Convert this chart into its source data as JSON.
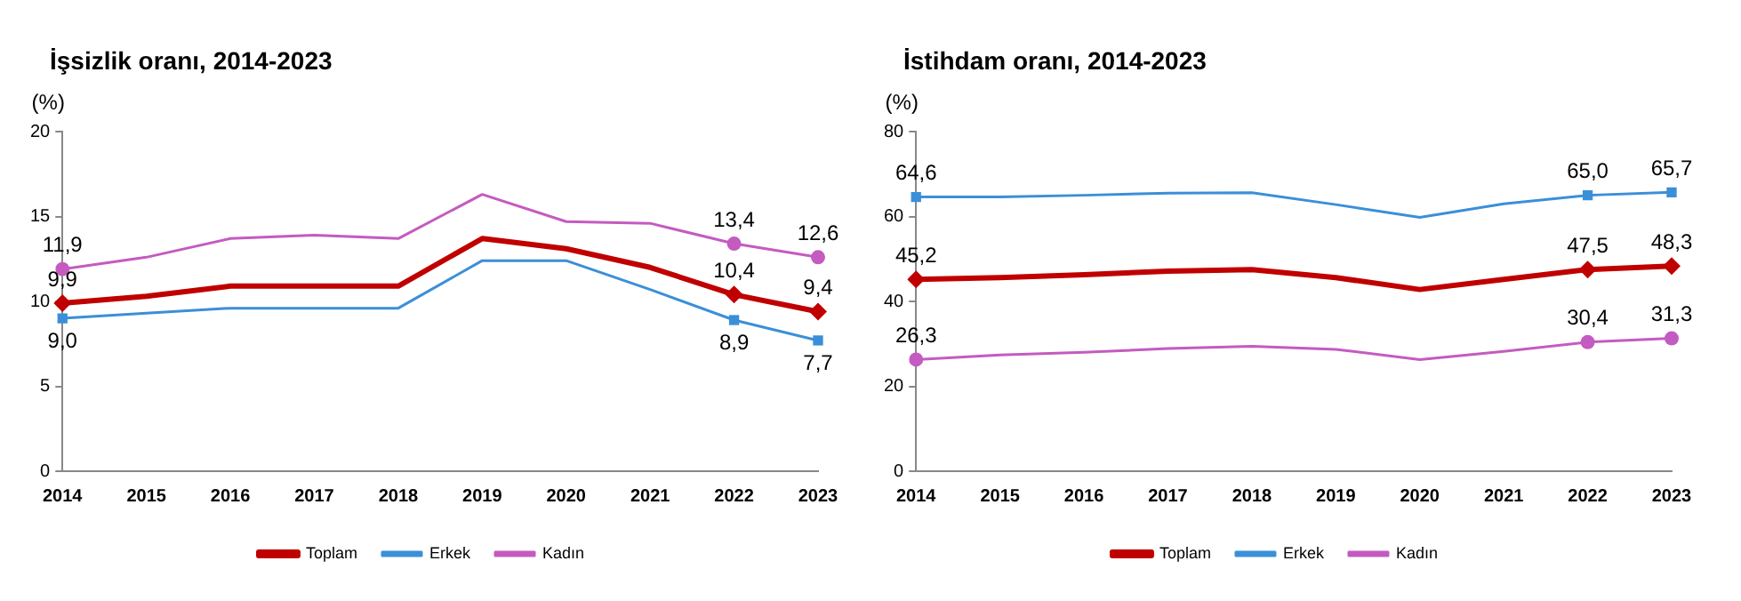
{
  "chart_data": [
    {
      "type": "line",
      "title": "İşsizlik oranı, 2014-2023",
      "ylabel": "(%)",
      "categories": [
        "2014",
        "2015",
        "2016",
        "2017",
        "2018",
        "2019",
        "2020",
        "2021",
        "2022",
        "2023"
      ],
      "ylim": [
        0,
        20
      ],
      "yticks": [
        0,
        5,
        10,
        15,
        20
      ],
      "grid": false,
      "legend": "bottom",
      "series": [
        {
          "name": "Toplam",
          "color": "#c00000",
          "values": [
            9.9,
            10.3,
            10.9,
            10.9,
            10.9,
            13.7,
            13.1,
            12.0,
            10.4,
            9.4
          ],
          "value_labels": [
            "9,9",
            null,
            null,
            null,
            null,
            null,
            null,
            null,
            "10,4",
            "9,4"
          ]
        },
        {
          "name": "Erkek",
          "color": "#3b8fd8",
          "values": [
            9.0,
            9.3,
            9.6,
            9.6,
            9.6,
            12.4,
            12.4,
            10.7,
            8.9,
            7.7
          ],
          "value_labels": [
            "9,0",
            null,
            null,
            null,
            null,
            null,
            null,
            null,
            "8,9",
            "7,7"
          ]
        },
        {
          "name": "Kadın",
          "color": "#c45bc0",
          "values": [
            11.9,
            12.6,
            13.7,
            13.9,
            13.7,
            16.3,
            14.7,
            14.6,
            13.4,
            12.6
          ],
          "value_labels": [
            "11,9",
            null,
            null,
            null,
            null,
            null,
            null,
            null,
            "13,4",
            "12,6"
          ]
        }
      ]
    },
    {
      "type": "line",
      "title": "İstihdam oranı, 2014-2023",
      "ylabel": "(%)",
      "categories": [
        "2014",
        "2015",
        "2016",
        "2017",
        "2018",
        "2019",
        "2020",
        "2021",
        "2022",
        "2023"
      ],
      "ylim": [
        0,
        80
      ],
      "yticks": [
        0,
        20,
        40,
        60,
        80
      ],
      "grid": false,
      "legend": "bottom",
      "series": [
        {
          "name": "Toplam",
          "color": "#c00000",
          "values": [
            45.2,
            45.6,
            46.3,
            47.1,
            47.5,
            45.6,
            42.8,
            45.2,
            47.5,
            48.3
          ],
          "value_labels": [
            "45,2",
            null,
            null,
            null,
            null,
            null,
            null,
            null,
            "47,5",
            "48,3"
          ]
        },
        {
          "name": "Erkek",
          "color": "#3b8fd8",
          "values": [
            64.6,
            64.6,
            65.0,
            65.5,
            65.6,
            62.8,
            59.8,
            63.0,
            65.0,
            65.7
          ],
          "value_labels": [
            "64,6",
            null,
            null,
            null,
            null,
            null,
            null,
            null,
            "65,0",
            "65,7"
          ]
        },
        {
          "name": "Kadın",
          "color": "#c45bc0",
          "values": [
            26.3,
            27.4,
            28.0,
            28.9,
            29.4,
            28.7,
            26.3,
            28.2,
            30.4,
            31.3
          ],
          "value_labels": [
            "26,3",
            null,
            null,
            null,
            null,
            null,
            null,
            null,
            "30,4",
            "31,3"
          ]
        }
      ]
    }
  ]
}
